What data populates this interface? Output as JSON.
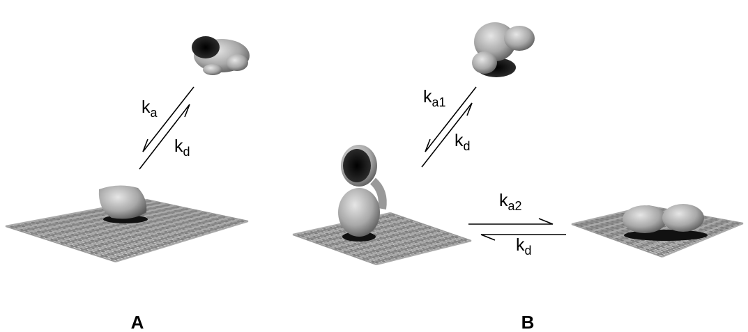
{
  "panel_a": {
    "label": "A",
    "forward": {
      "symbol": "k",
      "subscript": "a"
    },
    "reverse": {
      "symbol": "k",
      "subscript": "d"
    }
  },
  "panel_b": {
    "label": "B",
    "step1_forward": {
      "symbol": "k",
      "subscript": "a1"
    },
    "step1_reverse": {
      "symbol": "k",
      "subscript": "d"
    },
    "step2_forward": {
      "symbol": "k",
      "subscript": "a2"
    },
    "step2_reverse": {
      "symbol": "k",
      "subscript": "d"
    }
  }
}
